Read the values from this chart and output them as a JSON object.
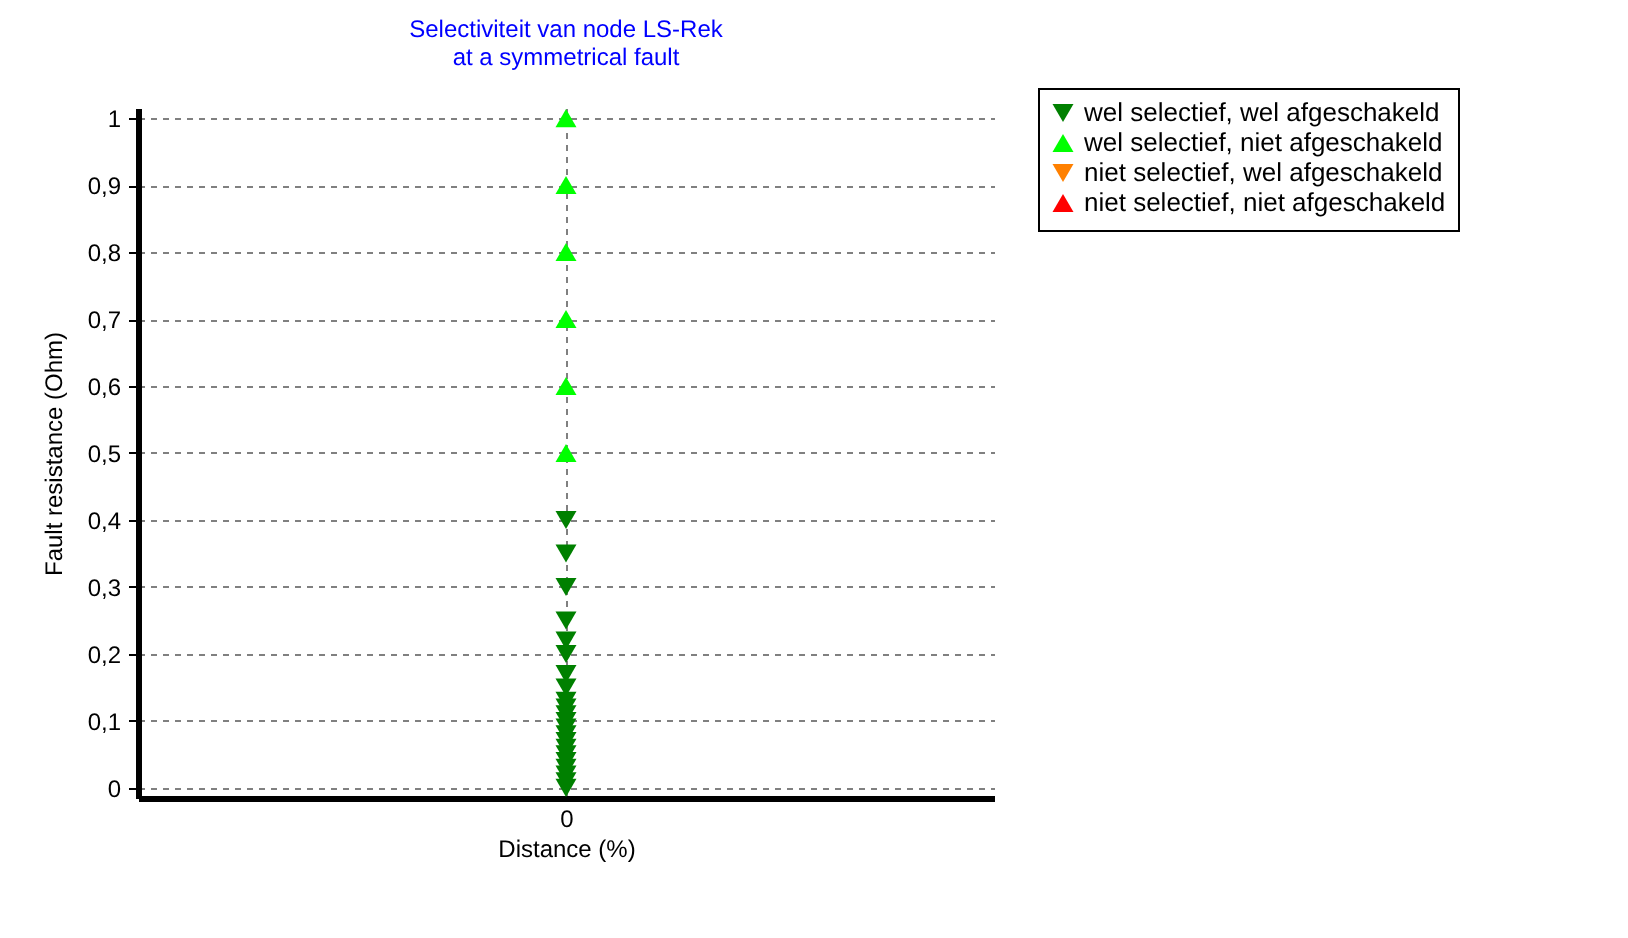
{
  "chart_data": {
    "type": "scatter",
    "title": "Selectiviteit van node LS-Rek",
    "subtitle": "at a symmetrical fault",
    "xlabel": "Distance (%)",
    "ylabel": "Fault resistance (Ohm)",
    "categories": [
      "0"
    ],
    "ylim": [
      -0.015,
      1.015
    ],
    "yticks": [
      {
        "value": 0,
        "label": "0"
      },
      {
        "value": 0.1,
        "label": "0,1"
      },
      {
        "value": 0.2,
        "label": "0,2"
      },
      {
        "value": 0.3,
        "label": "0,3"
      },
      {
        "value": 0.4,
        "label": "0,4"
      },
      {
        "value": 0.5,
        "label": "0,5"
      },
      {
        "value": 0.6,
        "label": "0,6"
      },
      {
        "value": 0.7,
        "label": "0,7"
      },
      {
        "value": 0.8,
        "label": "0,8"
      },
      {
        "value": 0.9,
        "label": "0,9"
      },
      {
        "value": 1,
        "label": "1"
      }
    ],
    "grid": true,
    "legend": "top right",
    "series": [
      {
        "name": "wel selectief, wel afgeschakeld",
        "color": "#008000",
        "marker": "triangle-down",
        "x": [
          "0",
          "0",
          "0",
          "0",
          "0",
          "0",
          "0",
          "0",
          "0",
          "0",
          "0",
          "0",
          "0",
          "0",
          "0",
          "0",
          "0",
          "0",
          "0",
          "0",
          "0",
          "0"
        ],
        "values": [
          0.4,
          0.35,
          0.3,
          0.25,
          0.22,
          0.2,
          0.17,
          0.15,
          0.13,
          0.12,
          0.11,
          0.1,
          0.09,
          0.08,
          0.07,
          0.06,
          0.05,
          0.04,
          0.03,
          0.02,
          0.01,
          0
        ]
      },
      {
        "name": "wel selectief, niet afgeschakeld",
        "color": "#00ff00",
        "marker": "triangle",
        "x": [
          "0",
          "0",
          "0",
          "0",
          "0",
          "0"
        ],
        "values": [
          1,
          0.9,
          0.8,
          0.7,
          0.6,
          0.5
        ]
      },
      {
        "name": "niet selectief, wel afgeschakeld",
        "color": "#ff8000",
        "marker": "triangle-down",
        "values": [
          null
        ]
      },
      {
        "name": "niet selectief, niet afgeschakeld",
        "color": "#ff0000",
        "marker": "triangle",
        "values": [
          null
        ]
      }
    ]
  }
}
